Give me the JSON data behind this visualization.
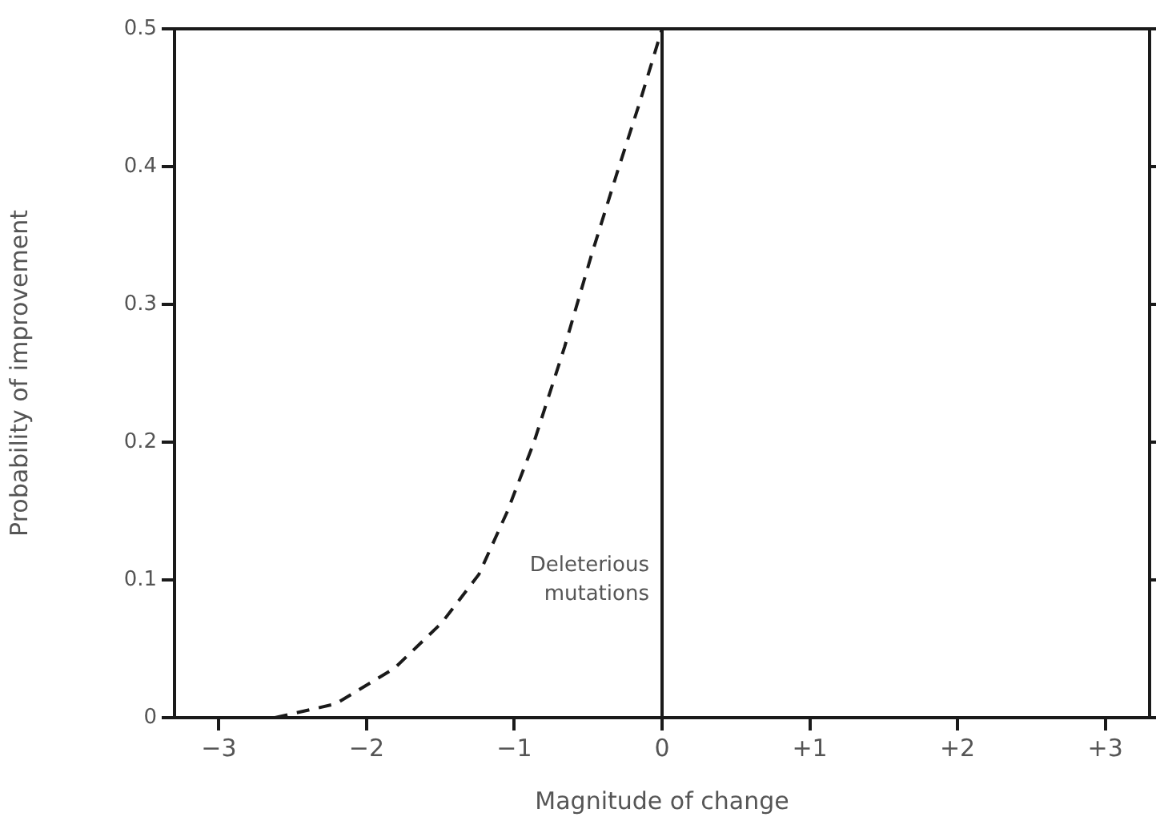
{
  "chart_data": {
    "type": "line",
    "xlabel": "Magnitude of change",
    "ylabel": "Probability of improvement",
    "x": [
      -2.62,
      -2.21,
      -1.81,
      -1.49,
      -1.24,
      -1.05,
      -0.87,
      -0.66,
      -0.48,
      -0.3,
      -0.15,
      0
    ],
    "series": [
      {
        "color": "#1a1a1a",
        "line_style": "dashed",
        "values": [
          0,
          0.01,
          0.036,
          0.069,
          0.104,
          0.149,
          0.199,
          0.269,
          0.335,
          0.397,
          0.447,
          0.5
        ]
      }
    ],
    "xlim": [
      -3.3,
      3.3
    ],
    "xticks": [
      {
        "value": -3,
        "label": "−3"
      },
      {
        "value": -2,
        "label": "−2"
      },
      {
        "value": -1,
        "label": "−1"
      },
      0,
      {
        "value": 1,
        "label": "+1"
      },
      {
        "value": 2,
        "label": "+2"
      },
      {
        "value": 3,
        "label": "+3"
      }
    ],
    "ylim": [
      0,
      0.5
    ],
    "yticks": [
      0,
      0.1,
      0.2,
      0.3,
      0.4,
      0.5
    ],
    "ref_lines": [
      {
        "axis": "x",
        "value": 0,
        "color": "#1a1a1a",
        "line_style": "solid"
      }
    ],
    "annotations": [
      {
        "text": "Deleterious mutations",
        "x": 0,
        "y": 0.1
      }
    ],
    "grid": false,
    "legend": false,
    "marker": "none"
  }
}
